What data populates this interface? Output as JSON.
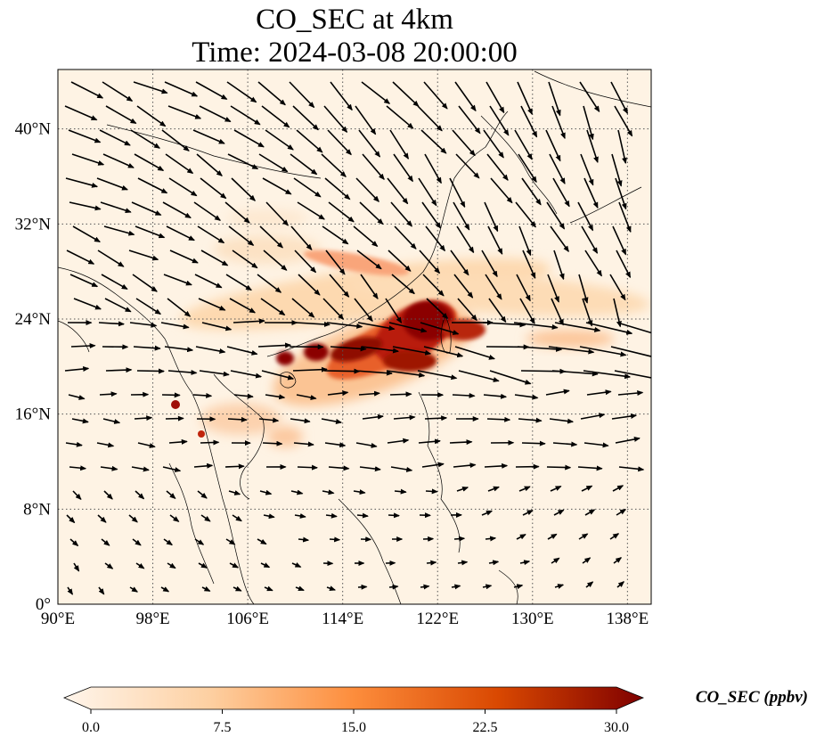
{
  "title_line1": "CO_SEC at 4km",
  "title_line2": "Time: 2024-03-08 20:00:00",
  "map": {
    "lon_range": [
      90,
      140
    ],
    "lat_range": [
      0,
      45
    ],
    "lon_ticks": [
      90,
      98,
      106,
      114,
      122,
      130,
      138
    ],
    "lon_tick_labels": [
      "90°E",
      "98°E",
      "106°E",
      "114°E",
      "122°E",
      "130°E",
      "138°E"
    ],
    "lat_ticks": [
      0,
      8,
      16,
      24,
      32,
      40
    ],
    "lat_tick_labels": [
      "0°",
      "8°N",
      "16°N",
      "24°N",
      "32°N",
      "40°N"
    ],
    "gridlines": "dotted"
  },
  "colorbar": {
    "label": "CO_SEC (ppbv)",
    "min": 0.0,
    "max": 30.0,
    "ticks": [
      0,
      7.5,
      15,
      22.5,
      30
    ],
    "tick_labels": [
      "0.0",
      "7.5",
      "15.0",
      "22.5",
      "30.0"
    ],
    "extend": "both",
    "colormap": [
      "#fff5eb",
      "#fdd0a2",
      "#fd8d3c",
      "#d94801",
      "#7f0000"
    ]
  },
  "colors": {
    "background_field": "#fef3e4",
    "coastline": "#000000",
    "wind_arrow": "#000000"
  }
}
